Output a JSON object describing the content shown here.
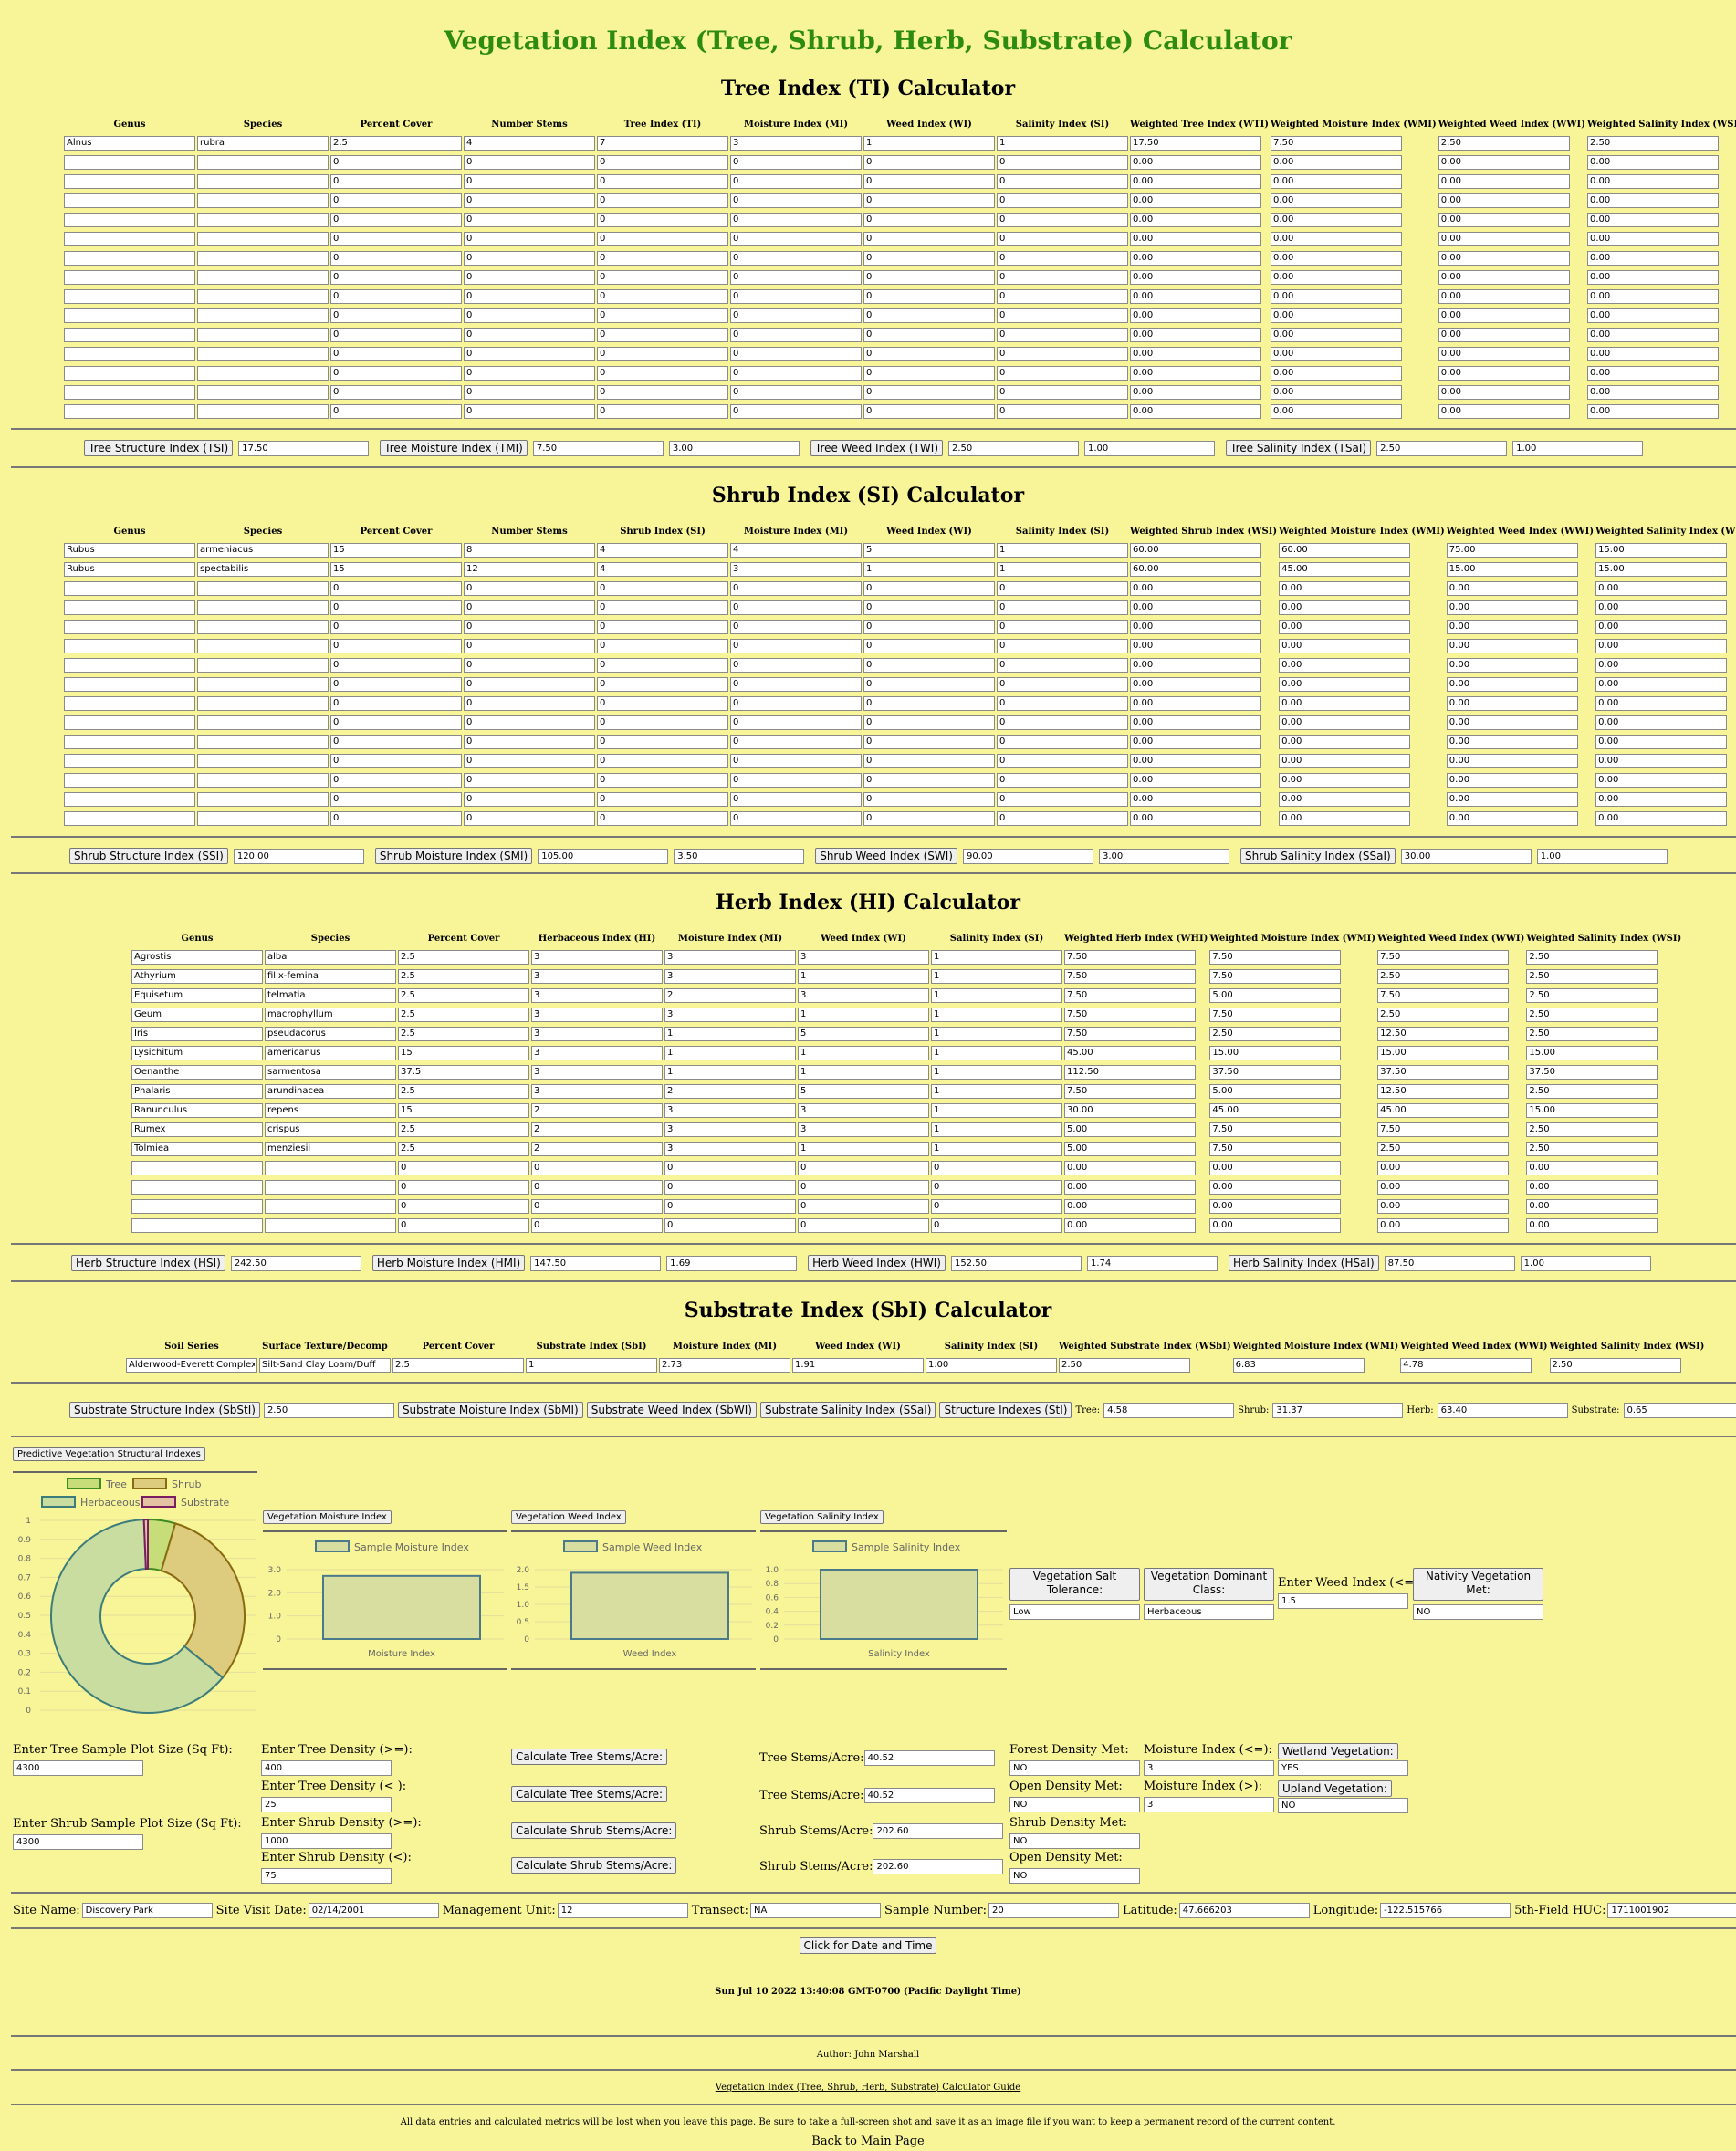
{
  "page_title": "Vegetation Index (Tree, Shrub, Herb, Substrate) Calculator",
  "tree": {
    "title": "Tree Index (TI) Calculator",
    "headers": [
      "Genus",
      "Species",
      "Percent Cover",
      "Number Stems",
      "Tree Index (TI)",
      "Moisture Index (MI)",
      "Weed Index (WI)",
      "Salinity Index (SI)",
      "Weighted Tree Index (WTI)",
      "Weighted Moisture Index (WMI)",
      "Weighted Weed Index (WWI)",
      "Weighted Salinity Index (WSI)"
    ],
    "rows": [
      [
        "Alnus",
        "rubra",
        "2.5",
        "4",
        "7",
        "3",
        "1",
        "1",
        "17.50",
        "7.50",
        "2.50",
        "2.50"
      ],
      [
        "",
        "",
        "0",
        "0",
        "0",
        "0",
        "0",
        "0",
        "0.00",
        "0.00",
        "0.00",
        "0.00"
      ],
      [
        "",
        "",
        "0",
        "0",
        "0",
        "0",
        "0",
        "0",
        "0.00",
        "0.00",
        "0.00",
        "0.00"
      ],
      [
        "",
        "",
        "0",
        "0",
        "0",
        "0",
        "0",
        "0",
        "0.00",
        "0.00",
        "0.00",
        "0.00"
      ],
      [
        "",
        "",
        "0",
        "0",
        "0",
        "0",
        "0",
        "0",
        "0.00",
        "0.00",
        "0.00",
        "0.00"
      ],
      [
        "",
        "",
        "0",
        "0",
        "0",
        "0",
        "0",
        "0",
        "0.00",
        "0.00",
        "0.00",
        "0.00"
      ],
      [
        "",
        "",
        "0",
        "0",
        "0",
        "0",
        "0",
        "0",
        "0.00",
        "0.00",
        "0.00",
        "0.00"
      ],
      [
        "",
        "",
        "0",
        "0",
        "0",
        "0",
        "0",
        "0",
        "0.00",
        "0.00",
        "0.00",
        "0.00"
      ],
      [
        "",
        "",
        "0",
        "0",
        "0",
        "0",
        "0",
        "0",
        "0.00",
        "0.00",
        "0.00",
        "0.00"
      ],
      [
        "",
        "",
        "0",
        "0",
        "0",
        "0",
        "0",
        "0",
        "0.00",
        "0.00",
        "0.00",
        "0.00"
      ],
      [
        "",
        "",
        "0",
        "0",
        "0",
        "0",
        "0",
        "0",
        "0.00",
        "0.00",
        "0.00",
        "0.00"
      ],
      [
        "",
        "",
        "0",
        "0",
        "0",
        "0",
        "0",
        "0",
        "0.00",
        "0.00",
        "0.00",
        "0.00"
      ],
      [
        "",
        "",
        "0",
        "0",
        "0",
        "0",
        "0",
        "0",
        "0.00",
        "0.00",
        "0.00",
        "0.00"
      ],
      [
        "",
        "",
        "0",
        "0",
        "0",
        "0",
        "0",
        "0",
        "0.00",
        "0.00",
        "0.00",
        "0.00"
      ],
      [
        "",
        "",
        "0",
        "0",
        "0",
        "0",
        "0",
        "0",
        "0.00",
        "0.00",
        "0.00",
        "0.00"
      ]
    ],
    "summary": [
      {
        "label": "Tree Structure Index (TSI)",
        "values": [
          "17.50"
        ]
      },
      {
        "label": "Tree Moisture Index (TMI)",
        "values": [
          "7.50",
          "3.00"
        ]
      },
      {
        "label": "Tree Weed Index (TWI)",
        "values": [
          "2.50",
          "1.00"
        ]
      },
      {
        "label": "Tree Salinity Index (TSaI)",
        "values": [
          "2.50",
          "1.00"
        ]
      }
    ]
  },
  "shrub": {
    "title": "Shrub Index (SI) Calculator",
    "headers": [
      "Genus",
      "Species",
      "Percent Cover",
      "Number Stems",
      "Shrub Index (SI)",
      "Moisture Index (MI)",
      "Weed Index (WI)",
      "Salinity Index (SI)",
      "Weighted Shrub Index (WSI)",
      "Weighted Moisture Index (WMI)",
      "Weighted Weed Index (WWI)",
      "Weighted Salinity Index (WSI)"
    ],
    "rows": [
      [
        "Rubus",
        "armeniacus",
        "15",
        "8",
        "4",
        "4",
        "5",
        "1",
        "60.00",
        "60.00",
        "75.00",
        "15.00"
      ],
      [
        "Rubus",
        "spectabilis",
        "15",
        "12",
        "4",
        "3",
        "1",
        "1",
        "60.00",
        "45.00",
        "15.00",
        "15.00"
      ],
      [
        "",
        "",
        "0",
        "0",
        "0",
        "0",
        "0",
        "0",
        "0.00",
        "0.00",
        "0.00",
        "0.00"
      ],
      [
        "",
        "",
        "0",
        "0",
        "0",
        "0",
        "0",
        "0",
        "0.00",
        "0.00",
        "0.00",
        "0.00"
      ],
      [
        "",
        "",
        "0",
        "0",
        "0",
        "0",
        "0",
        "0",
        "0.00",
        "0.00",
        "0.00",
        "0.00"
      ],
      [
        "",
        "",
        "0",
        "0",
        "0",
        "0",
        "0",
        "0",
        "0.00",
        "0.00",
        "0.00",
        "0.00"
      ],
      [
        "",
        "",
        "0",
        "0",
        "0",
        "0",
        "0",
        "0",
        "0.00",
        "0.00",
        "0.00",
        "0.00"
      ],
      [
        "",
        "",
        "0",
        "0",
        "0",
        "0",
        "0",
        "0",
        "0.00",
        "0.00",
        "0.00",
        "0.00"
      ],
      [
        "",
        "",
        "0",
        "0",
        "0",
        "0",
        "0",
        "0",
        "0.00",
        "0.00",
        "0.00",
        "0.00"
      ],
      [
        "",
        "",
        "0",
        "0",
        "0",
        "0",
        "0",
        "0",
        "0.00",
        "0.00",
        "0.00",
        "0.00"
      ],
      [
        "",
        "",
        "0",
        "0",
        "0",
        "0",
        "0",
        "0",
        "0.00",
        "0.00",
        "0.00",
        "0.00"
      ],
      [
        "",
        "",
        "0",
        "0",
        "0",
        "0",
        "0",
        "0",
        "0.00",
        "0.00",
        "0.00",
        "0.00"
      ],
      [
        "",
        "",
        "0",
        "0",
        "0",
        "0",
        "0",
        "0",
        "0.00",
        "0.00",
        "0.00",
        "0.00"
      ],
      [
        "",
        "",
        "0",
        "0",
        "0",
        "0",
        "0",
        "0",
        "0.00",
        "0.00",
        "0.00",
        "0.00"
      ],
      [
        "",
        "",
        "0",
        "0",
        "0",
        "0",
        "0",
        "0",
        "0.00",
        "0.00",
        "0.00",
        "0.00"
      ]
    ],
    "summary": [
      {
        "label": "Shrub Structure Index (SSI)",
        "values": [
          "120.00"
        ]
      },
      {
        "label": "Shrub Moisture Index (SMI)",
        "values": [
          "105.00",
          "3.50"
        ]
      },
      {
        "label": "Shrub Weed Index (SWI)",
        "values": [
          "90.00",
          "3.00"
        ]
      },
      {
        "label": "Shrub Salinity Index (SSaI)",
        "values": [
          "30.00",
          "1.00"
        ]
      }
    ]
  },
  "herb": {
    "title": "Herb Index (HI) Calculator",
    "headers": [
      "Genus",
      "Species",
      "Percent Cover",
      "Herbaceous Index (HI)",
      "Moisture Index (MI)",
      "Weed Index (WI)",
      "Salinity Index (SI)",
      "Weighted Herb Index (WHI)",
      "Weighted Moisture Index (WMI)",
      "Weighted Weed Index (WWI)",
      "Weighted Salinity Index (WSI)"
    ],
    "rows": [
      [
        "Agrostis",
        "alba",
        "2.5",
        "3",
        "3",
        "3",
        "1",
        "7.50",
        "7.50",
        "7.50",
        "2.50"
      ],
      [
        "Athyrium",
        "filix-femina",
        "2.5",
        "3",
        "3",
        "1",
        "1",
        "7.50",
        "7.50",
        "2.50",
        "2.50"
      ],
      [
        "Equisetum",
        "telmatia",
        "2.5",
        "3",
        "2",
        "3",
        "1",
        "7.50",
        "5.00",
        "7.50",
        "2.50"
      ],
      [
        "Geum",
        "macrophyllum",
        "2.5",
        "3",
        "3",
        "1",
        "1",
        "7.50",
        "7.50",
        "2.50",
        "2.50"
      ],
      [
        "Iris",
        "pseudacorus",
        "2.5",
        "3",
        "1",
        "5",
        "1",
        "7.50",
        "2.50",
        "12.50",
        "2.50"
      ],
      [
        "Lysichitum",
        "americanus",
        "15",
        "3",
        "1",
        "1",
        "1",
        "45.00",
        "15.00",
        "15.00",
        "15.00"
      ],
      [
        "Oenanthe",
        "sarmentosa",
        "37.5",
        "3",
        "1",
        "1",
        "1",
        "112.50",
        "37.50",
        "37.50",
        "37.50"
      ],
      [
        "Phalaris",
        "arundinacea",
        "2.5",
        "3",
        "2",
        "5",
        "1",
        "7.50",
        "5.00",
        "12.50",
        "2.50"
      ],
      [
        "Ranunculus",
        "repens",
        "15",
        "2",
        "3",
        "3",
        "1",
        "30.00",
        "45.00",
        "45.00",
        "15.00"
      ],
      [
        "Rumex",
        "crispus",
        "2.5",
        "2",
        "3",
        "3",
        "1",
        "5.00",
        "7.50",
        "7.50",
        "2.50"
      ],
      [
        "Tolmiea",
        "menziesii",
        "2.5",
        "2",
        "3",
        "1",
        "1",
        "5.00",
        "7.50",
        "2.50",
        "2.50"
      ],
      [
        "",
        "",
        "0",
        "0",
        "0",
        "0",
        "0",
        "0.00",
        "0.00",
        "0.00",
        "0.00"
      ],
      [
        "",
        "",
        "0",
        "0",
        "0",
        "0",
        "0",
        "0.00",
        "0.00",
        "0.00",
        "0.00"
      ],
      [
        "",
        "",
        "0",
        "0",
        "0",
        "0",
        "0",
        "0.00",
        "0.00",
        "0.00",
        "0.00"
      ],
      [
        "",
        "",
        "0",
        "0",
        "0",
        "0",
        "0",
        "0.00",
        "0.00",
        "0.00",
        "0.00"
      ]
    ],
    "summary": [
      {
        "label": "Herb Structure Index (HSI)",
        "values": [
          "242.50"
        ]
      },
      {
        "label": "Herb Moisture Index (HMI)",
        "values": [
          "147.50",
          "1.69"
        ]
      },
      {
        "label": "Herb Weed Index (HWI)",
        "values": [
          "152.50",
          "1.74"
        ]
      },
      {
        "label": "Herb Salinity Index (HSaI)",
        "values": [
          "87.50",
          "1.00"
        ]
      }
    ]
  },
  "substrate": {
    "title": "Substrate Index (SbI) Calculator",
    "headers": [
      "Soil Series",
      "Surface Texture/Decomp",
      "Percent Cover",
      "Substrate Index (SbI)",
      "Moisture Index (MI)",
      "Weed Index (WI)",
      "Salinity Index (SI)",
      "Weighted Substrate Index (WSbI)",
      "Weighted Moisture Index (WMI)",
      "Weighted Weed Index (WWI)",
      "Weighted Salinity Index (WSI)"
    ],
    "rows": [
      [
        "Alderwood-Everett Complex",
        "Silt-Sand Clay Loam/Duff",
        "2.5",
        "1",
        "2.73",
        "1.91",
        "1.00",
        "2.50",
        "6.83",
        "4.78",
        "2.50"
      ]
    ],
    "summary_buttons": {
      "structure": "Substrate Structure Index (SbStI)",
      "structure_value": "2.50",
      "moisture": "Substrate Moisture Index (SbMI)",
      "weed": "Substrate Weed Index (SbWI)",
      "salinity": "Substrate Salinity Index (SSaI)",
      "struct_indexes": "Structure Indexes (StI)"
    },
    "struct_indexes": {
      "tree_label": "Tree:",
      "tree_value": "4.58",
      "shrub_label": "Shrub:",
      "shrub_value": "31.37",
      "herb_label": "Herb:",
      "herb_value": "63.40",
      "substrate_label": "Substrate:",
      "substrate_value": "0.65"
    }
  },
  "charts": {
    "predictive_button": "Predictive Vegetation Structural Indexes",
    "moisture_button": "Vegetation Moisture Index",
    "weed_button": "Vegetation Weed Index",
    "salinity_button": "Vegetation Salinity Index",
    "colors": {
      "tree_fill": "#c6dd7a",
      "tree_stroke": "#3e8b22",
      "shrub_fill": "#ddcc7e",
      "shrub_stroke": "#8a6a10",
      "herb_fill": "#c9dda0",
      "herb_stroke": "#3c7c7a",
      "substrate_fill": "#e3c3a2",
      "substrate_stroke": "#7a1e60",
      "bar_fill": "#d7dea0",
      "bar_stroke": "#4a7a8a"
    }
  },
  "chart_data": [
    {
      "type": "pie",
      "labels": [
        "Tree",
        "Shrub",
        "Herbaceous",
        "Substrate"
      ],
      "values": [
        4.58,
        31.37,
        63.4,
        0.65
      ],
      "ylim": [
        0,
        1
      ],
      "ticks": [
        "1",
        "0.9",
        "0.8",
        "0.7",
        "0.6",
        "0.5",
        "0.4",
        "0.3",
        "0.2",
        "0.1",
        "0"
      ]
    },
    {
      "type": "bar",
      "series": [
        {
          "name": "Sample Moisture Index",
          "values": [
            2.73
          ]
        }
      ],
      "categories": [
        "Moisture Index"
      ],
      "ylim": [
        0,
        3
      ],
      "ticks": [
        "3.0",
        "2.0",
        "1.0",
        "0"
      ]
    },
    {
      "type": "bar",
      "series": [
        {
          "name": "Sample Weed Index",
          "values": [
            1.91
          ]
        }
      ],
      "categories": [
        "Weed Index"
      ],
      "ylim": [
        0,
        2
      ],
      "ticks": [
        "2.0",
        "1.5",
        "1.0",
        "0.5",
        "0"
      ]
    },
    {
      "type": "bar",
      "series": [
        {
          "name": "Sample Salinity Index",
          "values": [
            1.0
          ]
        }
      ],
      "categories": [
        "Salinity Index"
      ],
      "ylim": [
        0,
        1
      ],
      "ticks": [
        "1.0",
        "0.8",
        "0.6",
        "0.4",
        "0.2",
        "0"
      ]
    }
  ],
  "predict": {
    "salt_tolerance_btn": "Vegetation Salt Tolerance:",
    "salt_tolerance_value": "Low",
    "dominant_class_btn": "Vegetation Dominant Class:",
    "dominant_class_value": "Herbaceous",
    "weed_index_label": "Enter Weed Index (<=):",
    "weed_index_value": "1.5",
    "nativity_btn": "Nativity Vegetation Met:",
    "nativity_value": "NO"
  },
  "density": {
    "tree_plot_label": "Enter Tree Sample Plot Size (Sq Ft):",
    "tree_plot_value": "4300",
    "shrub_plot_label": "Enter Shrub Sample Plot Size (Sq Ft):",
    "shrub_plot_value": "4300",
    "tree_ge_label": "Enter Tree Density (>=):",
    "tree_ge_value": "400",
    "tree_lt_label": "Enter Tree Density (< ):",
    "tree_lt_value": "25",
    "shrub_ge_label": "Enter Shrub Density (>=):",
    "shrub_ge_value": "1000",
    "shrub_lt_label": "Enter Shrub Density (<):",
    "shrub_lt_value": "75",
    "calc_tree_btn": "Calculate Tree Stems/Acre:",
    "calc_shrub_btn": "Calculate Shrub Stems/Acre:",
    "tree_stems_label": "Tree Stems/Acre:",
    "tree_stems_value": "40.52",
    "shrub_stems_label": "Shrub Stems/Acre:",
    "shrub_stems_value": "202.60",
    "forest_met_label": "Forest Density Met:",
    "forest_met_value": "NO",
    "open_met_label": "Open Density Met:",
    "open_met_value": "NO",
    "shrub_met_label": "Shrub Density Met:",
    "shrub_met_value": "NO",
    "open_met2_value": "NO",
    "moist_le_label": "Moisture Index (<=):",
    "moist_le_value": "3",
    "moist_gt_label": "Moisture Index (>):",
    "moist_gt_value": "3",
    "wetland_btn": "Wetland Vegetation:",
    "wetland_value": "YES",
    "upland_btn": "Upland Vegetation:",
    "upland_value": "NO"
  },
  "site": {
    "site_name_label": "Site Name:",
    "site_name": "Discovery Park",
    "visit_label": "Site Visit Date:",
    "visit_date": "02/14/2001",
    "mgmt_label": "Management Unit:",
    "mgmt_unit": "12",
    "transect_label": "Transect:",
    "transect": "NA",
    "sample_label": "Sample Number:",
    "sample_number": "20",
    "lat_label": "Latitude:",
    "latitude": "47.666203",
    "lon_label": "Longitude:",
    "longitude": "-122.515766",
    "huc_label": "5th-Field HUC:",
    "huc": "1711001902"
  },
  "footer": {
    "date_button": "Click for Date and Time",
    "date_text": "Sun Jul 10 2022 13:40:08 GMT-0700 (Pacific Daylight Time)",
    "author": "Author: John Marshall",
    "guide_link": "Vegetation Index (Tree, Shrub, Herb, Substrate) Calculator Guide",
    "notice": "All data entries and calculated metrics will be lost when you leave this page. Be sure to take a full-screen shot and save it as an image file if you want to keep a permanent record of the current content.",
    "main_link": "Back to Main Page"
  }
}
